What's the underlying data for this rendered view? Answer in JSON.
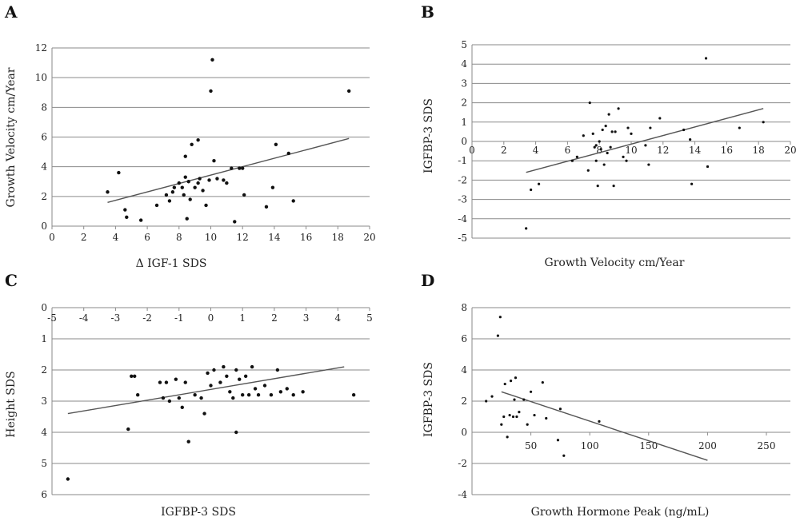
{
  "chart_data": [
    {
      "panel": "A",
      "type": "scatter",
      "xlabel": "Δ IGF-1 SDS",
      "ylabel": "Growth Velocity cm/Year",
      "xlim": [
        0,
        20
      ],
      "ylim": [
        0,
        12
      ],
      "xticks": [
        0,
        2,
        4,
        6,
        8,
        10,
        12,
        14,
        16,
        18,
        20
      ],
      "yticks": [
        0,
        2,
        4,
        6,
        8,
        10,
        12
      ],
      "grid": "horizontal",
      "points": [
        [
          3.5,
          2.3
        ],
        [
          4.2,
          3.6
        ],
        [
          4.6,
          1.1
        ],
        [
          4.7,
          0.6
        ],
        [
          5.6,
          0.4
        ],
        [
          6.6,
          1.4
        ],
        [
          7.2,
          2.1
        ],
        [
          7.4,
          1.7
        ],
        [
          7.6,
          2.3
        ],
        [
          7.7,
          2.6
        ],
        [
          8.0,
          2.9
        ],
        [
          8.2,
          2.6
        ],
        [
          8.3,
          2.1
        ],
        [
          8.4,
          3.3
        ],
        [
          8.4,
          4.7
        ],
        [
          8.5,
          0.5
        ],
        [
          8.6,
          3.0
        ],
        [
          8.7,
          1.8
        ],
        [
          8.8,
          5.5
        ],
        [
          9.0,
          2.6
        ],
        [
          9.2,
          2.9
        ],
        [
          9.2,
          5.8
        ],
        [
          9.3,
          3.2
        ],
        [
          9.5,
          2.4
        ],
        [
          9.7,
          1.4
        ],
        [
          9.9,
          3.1
        ],
        [
          10.0,
          9.1
        ],
        [
          10.1,
          11.2
        ],
        [
          10.2,
          4.4
        ],
        [
          10.4,
          3.2
        ],
        [
          10.8,
          3.1
        ],
        [
          11.0,
          2.9
        ],
        [
          11.3,
          3.9
        ],
        [
          11.5,
          0.3
        ],
        [
          11.8,
          3.9
        ],
        [
          12.0,
          3.9
        ],
        [
          12.1,
          2.1
        ],
        [
          13.5,
          1.3
        ],
        [
          13.9,
          2.6
        ],
        [
          14.1,
          5.5
        ],
        [
          14.9,
          4.9
        ],
        [
          15.2,
          1.7
        ],
        [
          18.7,
          9.1
        ]
      ],
      "trendline": [
        [
          3.5,
          1.6
        ],
        [
          18.7,
          5.9
        ]
      ]
    },
    {
      "panel": "B",
      "type": "scatter",
      "xlabel": "Growth Velocity cm/Year",
      "ylabel": "IGFBP-3 SDS",
      "xlim": [
        0,
        20
      ],
      "ylim": [
        -5,
        5
      ],
      "xticks": [
        0,
        2,
        4,
        6,
        8,
        10,
        12,
        14,
        16,
        18,
        20
      ],
      "yticks": [
        -5,
        -4,
        -3,
        -2,
        -1,
        0,
        1,
        2,
        3,
        4,
        5
      ],
      "grid": "horizontal",
      "points": [
        [
          3.4,
          -4.5
        ],
        [
          3.7,
          -2.5
        ],
        [
          4.2,
          -2.2
        ],
        [
          6.3,
          -1.0
        ],
        [
          6.6,
          -0.8
        ],
        [
          7.0,
          0.3
        ],
        [
          7.3,
          -1.5
        ],
        [
          7.4,
          2.0
        ],
        [
          7.6,
          0.4
        ],
        [
          7.7,
          -0.3
        ],
        [
          7.8,
          -0.2
        ],
        [
          7.8,
          -1.0
        ],
        [
          7.9,
          -2.3
        ],
        [
          8.0,
          0.0
        ],
        [
          8.1,
          -0.4
        ],
        [
          8.2,
          0.6
        ],
        [
          8.3,
          -1.2
        ],
        [
          8.4,
          0.8
        ],
        [
          8.5,
          -0.6
        ],
        [
          8.6,
          1.4
        ],
        [
          8.7,
          -0.3
        ],
        [
          8.8,
          0.5
        ],
        [
          8.9,
          -2.3
        ],
        [
          9.0,
          0.5
        ],
        [
          9.2,
          1.7
        ],
        [
          9.5,
          -0.8
        ],
        [
          9.7,
          -1.0
        ],
        [
          9.8,
          0.7
        ],
        [
          10.0,
          0.4
        ],
        [
          10.9,
          -0.2
        ],
        [
          11.1,
          -1.2
        ],
        [
          11.2,
          0.7
        ],
        [
          11.8,
          1.2
        ],
        [
          13.3,
          0.6
        ],
        [
          13.7,
          0.1
        ],
        [
          13.8,
          -2.2
        ],
        [
          14.7,
          4.3
        ],
        [
          14.8,
          -1.3
        ],
        [
          16.8,
          0.7
        ],
        [
          18.3,
          1.0
        ]
      ],
      "trendline": [
        [
          3.4,
          -1.6
        ],
        [
          18.3,
          1.7
        ]
      ]
    },
    {
      "panel": "C",
      "type": "scatter",
      "xlabel": "IGFBP-3 SDS",
      "ylabel": "Height SDS",
      "xlim": [
        -5,
        5
      ],
      "ylim": [
        0,
        6
      ],
      "y_inverted": true,
      "xticks": [
        -5,
        -4,
        -3,
        -2,
        -1,
        0,
        1,
        2,
        3,
        4,
        5
      ],
      "yticks": [
        0,
        1,
        2,
        3,
        4,
        5,
        6
      ],
      "grid": "horizontal",
      "points": [
        [
          -4.5,
          5.5
        ],
        [
          -2.6,
          3.9
        ],
        [
          -2.5,
          2.2
        ],
        [
          -2.4,
          2.2
        ],
        [
          -2.3,
          2.8
        ],
        [
          -1.6,
          2.4
        ],
        [
          -1.5,
          2.9
        ],
        [
          -1.4,
          2.4
        ],
        [
          -1.3,
          3.0
        ],
        [
          -1.1,
          2.3
        ],
        [
          -1.0,
          2.9
        ],
        [
          -0.9,
          3.2
        ],
        [
          -0.8,
          2.4
        ],
        [
          -0.7,
          4.3
        ],
        [
          -0.5,
          2.8
        ],
        [
          -0.3,
          2.9
        ],
        [
          -0.2,
          3.4
        ],
        [
          -0.1,
          2.1
        ],
        [
          0.0,
          2.5
        ],
        [
          0.1,
          2.0
        ],
        [
          0.3,
          2.4
        ],
        [
          0.4,
          1.9
        ],
        [
          0.5,
          2.2
        ],
        [
          0.6,
          2.7
        ],
        [
          0.7,
          2.9
        ],
        [
          0.8,
          2.0
        ],
        [
          0.8,
          4.0
        ],
        [
          0.9,
          2.3
        ],
        [
          1.0,
          2.8
        ],
        [
          1.1,
          2.2
        ],
        [
          1.2,
          2.8
        ],
        [
          1.3,
          1.9
        ],
        [
          1.4,
          2.6
        ],
        [
          1.5,
          2.8
        ],
        [
          1.7,
          2.5
        ],
        [
          1.9,
          2.8
        ],
        [
          2.1,
          2.0
        ],
        [
          2.2,
          2.7
        ],
        [
          2.4,
          2.6
        ],
        [
          2.6,
          2.8
        ],
        [
          2.9,
          2.7
        ],
        [
          4.5,
          2.8
        ]
      ],
      "trendline": [
        [
          -4.5,
          3.4
        ],
        [
          4.2,
          1.9
        ]
      ]
    },
    {
      "panel": "D",
      "type": "scatter",
      "xlabel": "Growth Hormone Peak (ng/mL)",
      "ylabel": "IGFBP-3 SDS",
      "xlim": [
        0,
        250
      ],
      "ylim": [
        -4,
        8
      ],
      "xticks": [
        50,
        100,
        150,
        200,
        250
      ],
      "yticks": [
        -4,
        -2,
        0,
        2,
        4,
        6,
        8
      ],
      "grid": "horizontal",
      "points": [
        [
          12,
          2.0
        ],
        [
          17,
          2.3
        ],
        [
          22,
          6.2
        ],
        [
          24,
          7.4
        ],
        [
          25,
          0.5
        ],
        [
          27,
          1.0
        ],
        [
          28,
          3.1
        ],
        [
          30,
          -0.3
        ],
        [
          32,
          1.1
        ],
        [
          33,
          3.3
        ],
        [
          35,
          1.0
        ],
        [
          36,
          2.1
        ],
        [
          37,
          3.5
        ],
        [
          38,
          1.0
        ],
        [
          40,
          1.3
        ],
        [
          44,
          2.1
        ],
        [
          47,
          0.5
        ],
        [
          50,
          2.6
        ],
        [
          53,
          1.1
        ],
        [
          60,
          3.2
        ],
        [
          63,
          0.9
        ],
        [
          73,
          -0.5
        ],
        [
          75,
          1.5
        ],
        [
          78,
          -1.5
        ],
        [
          108,
          0.7
        ]
      ],
      "trendline": [
        [
          25,
          2.6
        ],
        [
          200,
          -1.8
        ]
      ]
    }
  ]
}
